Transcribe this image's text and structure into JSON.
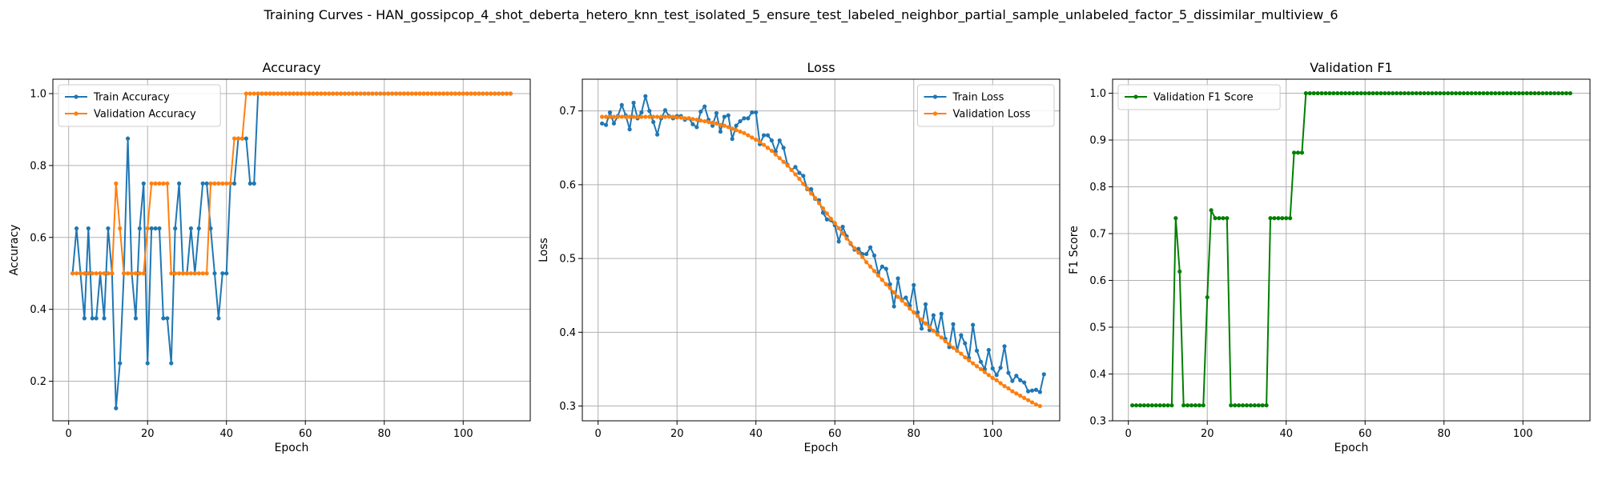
{
  "figure": {
    "suptitle": "Training Curves - HAN_gossipcop_4_shot_deberta_hetero_knn_test_isolated_5_ensure_test_labeled_neighbor_partial_sample_unlabeled_factor_5_dissimilar_multiview_6"
  },
  "colors": {
    "blue": "#1f77b4",
    "orange": "#ff7f0e",
    "green": "#008000",
    "grid": "#b0b0b0"
  },
  "chart_data": [
    {
      "type": "line",
      "title": "Accuracy",
      "xlabel": "Epoch",
      "ylabel": "Accuracy",
      "xlim": [
        -4,
        117
      ],
      "ylim": [
        0.09,
        1.04
      ],
      "xticks": [
        0,
        20,
        40,
        60,
        80,
        100
      ],
      "yticks": [
        0.2,
        0.4,
        0.6,
        0.8,
        1.0
      ],
      "ytick_labels": [
        "0.2",
        "0.4",
        "0.6",
        "0.8",
        "1.0"
      ],
      "grid": true,
      "legend_position": "upper left",
      "x_start": 1,
      "series": [
        {
          "name": "Train Accuracy",
          "color": "#1f77b4",
          "values": [
            0.5,
            0.625,
            0.5,
            0.375,
            0.625,
            0.375,
            0.375,
            0.5,
            0.375,
            0.625,
            0.5,
            0.125,
            0.25,
            0.5,
            0.875,
            0.5,
            0.375,
            0.625,
            0.75,
            0.25,
            0.625,
            0.625,
            0.625,
            0.375,
            0.375,
            0.25,
            0.625,
            0.75,
            0.5,
            0.5,
            0.625,
            0.5,
            0.625,
            0.75,
            0.75,
            0.625,
            0.5,
            0.375,
            0.5,
            0.5,
            0.75,
            0.75,
            0.875,
            0.875,
            0.875,
            0.75,
            0.75,
            1,
            1,
            1,
            1,
            1,
            1,
            1,
            1,
            1,
            1,
            1,
            1,
            1,
            1,
            1,
            1,
            1,
            1,
            1,
            1,
            1,
            1,
            1,
            1,
            1,
            1,
            1,
            1,
            1,
            1,
            1,
            1,
            1,
            1,
            1,
            1,
            1,
            1,
            1,
            1,
            1,
            1,
            1,
            1,
            1,
            1,
            1,
            1,
            1,
            1,
            1,
            1,
            1,
            1,
            1,
            1,
            1,
            1,
            1,
            1,
            1,
            1,
            1,
            1,
            1
          ]
        },
        {
          "name": "Validation Accuracy",
          "color": "#ff7f0e",
          "values": [
            0.5,
            0.5,
            0.5,
            0.5,
            0.5,
            0.5,
            0.5,
            0.5,
            0.5,
            0.5,
            0.5,
            0.75,
            0.625,
            0.5,
            0.5,
            0.5,
            0.5,
            0.5,
            0.5,
            0.625,
            0.75,
            0.75,
            0.75,
            0.75,
            0.75,
            0.5,
            0.5,
            0.5,
            0.5,
            0.5,
            0.5,
            0.5,
            0.5,
            0.5,
            0.5,
            0.75,
            0.75,
            0.75,
            0.75,
            0.75,
            0.75,
            0.875,
            0.875,
            0.875,
            1,
            1,
            1,
            1,
            1,
            1,
            1,
            1,
            1,
            1,
            1,
            1,
            1,
            1,
            1,
            1,
            1,
            1,
            1,
            1,
            1,
            1,
            1,
            1,
            1,
            1,
            1,
            1,
            1,
            1,
            1,
            1,
            1,
            1,
            1,
            1,
            1,
            1,
            1,
            1,
            1,
            1,
            1,
            1,
            1,
            1,
            1,
            1,
            1,
            1,
            1,
            1,
            1,
            1,
            1,
            1,
            1,
            1,
            1,
            1,
            1,
            1,
            1,
            1,
            1,
            1,
            1,
            1
          ]
        }
      ]
    },
    {
      "type": "line",
      "title": "Loss",
      "xlabel": "Epoch",
      "ylabel": "Loss",
      "xlim": [
        -4,
        117
      ],
      "ylim": [
        0.28,
        0.743
      ],
      "xticks": [
        0,
        20,
        40,
        60,
        80,
        100
      ],
      "yticks": [
        0.3,
        0.4,
        0.5,
        0.6,
        0.7
      ],
      "ytick_labels": [
        "0.3",
        "0.4",
        "0.5",
        "0.6",
        "0.7"
      ],
      "grid": true,
      "legend_position": "upper right",
      "x_start": 1,
      "series": [
        {
          "name": "Train Loss",
          "color": "#1f77b4",
          "values": [
            0.683,
            0.681,
            0.698,
            0.683,
            0.693,
            0.708,
            0.694,
            0.675,
            0.711,
            0.69,
            0.698,
            0.72,
            0.7,
            0.685,
            0.668,
            0.69,
            0.701,
            0.693,
            0.69,
            0.693,
            0.693,
            0.688,
            0.69,
            0.682,
            0.678,
            0.699,
            0.706,
            0.688,
            0.68,
            0.697,
            0.672,
            0.692,
            0.694,
            0.662,
            0.68,
            0.686,
            0.69,
            0.69,
            0.698,
            0.698,
            0.655,
            0.667,
            0.667,
            0.66,
            0.645,
            0.66,
            0.65,
            0.627,
            0.62,
            0.624,
            0.616,
            0.612,
            0.594,
            0.594,
            0.581,
            0.579,
            0.562,
            0.553,
            0.552,
            0.545,
            0.523,
            0.543,
            0.53,
            0.52,
            0.512,
            0.513,
            0.506,
            0.506,
            0.515,
            0.504,
            0.48,
            0.489,
            0.486,
            0.465,
            0.435,
            0.473,
            0.444,
            0.447,
            0.436,
            0.464,
            0.427,
            0.405,
            0.438,
            0.403,
            0.423,
            0.4,
            0.425,
            0.391,
            0.38,
            0.411,
            0.375,
            0.396,
            0.385,
            0.365,
            0.41,
            0.375,
            0.36,
            0.35,
            0.376,
            0.351,
            0.342,
            0.352,
            0.381,
            0.345,
            0.334,
            0.341,
            0.335,
            0.332,
            0.32,
            0.321,
            0.322,
            0.319,
            0.343
          ]
        },
        {
          "name": "Validation Loss",
          "color": "#ff7f0e",
          "values": [
            0.692,
            0.692,
            0.692,
            0.692,
            0.692,
            0.692,
            0.692,
            0.692,
            0.692,
            0.692,
            0.692,
            0.692,
            0.692,
            0.692,
            0.692,
            0.692,
            0.692,
            0.692,
            0.692,
            0.691,
            0.691,
            0.69,
            0.69,
            0.689,
            0.688,
            0.687,
            0.686,
            0.685,
            0.684,
            0.683,
            0.681,
            0.68,
            0.678,
            0.676,
            0.674,
            0.672,
            0.67,
            0.667,
            0.664,
            0.661,
            0.658,
            0.654,
            0.65,
            0.646,
            0.641,
            0.636,
            0.631,
            0.626,
            0.62,
            0.614,
            0.608,
            0.601,
            0.595,
            0.588,
            0.582,
            0.575,
            0.568,
            0.561,
            0.554,
            0.548,
            0.541,
            0.534,
            0.527,
            0.521,
            0.514,
            0.508,
            0.502,
            0.495,
            0.489,
            0.483,
            0.477,
            0.471,
            0.465,
            0.46,
            0.454,
            0.448,
            0.443,
            0.438,
            0.432,
            0.427,
            0.422,
            0.417,
            0.412,
            0.407,
            0.402,
            0.397,
            0.393,
            0.388,
            0.384,
            0.379,
            0.375,
            0.371,
            0.366,
            0.362,
            0.358,
            0.354,
            0.35,
            0.346,
            0.342,
            0.338,
            0.335,
            0.331,
            0.327,
            0.324,
            0.32,
            0.317,
            0.314,
            0.311,
            0.308,
            0.305,
            0.302,
            0.3
          ]
        }
      ]
    },
    {
      "type": "line",
      "title": "Validation F1",
      "xlabel": "Epoch",
      "ylabel": "F1 Score",
      "xlim": [
        -4,
        117
      ],
      "ylim": [
        0.3,
        1.03
      ],
      "xticks": [
        0,
        20,
        40,
        60,
        80,
        100
      ],
      "yticks": [
        0.3,
        0.4,
        0.5,
        0.6,
        0.7,
        0.8,
        0.9,
        1.0
      ],
      "ytick_labels": [
        "0.3",
        "0.4",
        "0.5",
        "0.6",
        "0.7",
        "0.8",
        "0.9",
        "1.0"
      ],
      "grid": true,
      "legend_position": "upper left",
      "x_start": 1,
      "series": [
        {
          "name": "Validation F1 Score",
          "color": "#008000",
          "values": [
            0.333,
            0.333,
            0.333,
            0.333,
            0.333,
            0.333,
            0.333,
            0.333,
            0.333,
            0.333,
            0.333,
            0.733,
            0.619,
            0.333,
            0.333,
            0.333,
            0.333,
            0.333,
            0.333,
            0.564,
            0.75,
            0.733,
            0.733,
            0.733,
            0.733,
            0.333,
            0.333,
            0.333,
            0.333,
            0.333,
            0.333,
            0.333,
            0.333,
            0.333,
            0.333,
            0.733,
            0.733,
            0.733,
            0.733,
            0.733,
            0.733,
            0.873,
            0.873,
            0.873,
            1,
            1,
            1,
            1,
            1,
            1,
            1,
            1,
            1,
            1,
            1,
            1,
            1,
            1,
            1,
            1,
            1,
            1,
            1,
            1,
            1,
            1,
            1,
            1,
            1,
            1,
            1,
            1,
            1,
            1,
            1,
            1,
            1,
            1,
            1,
            1,
            1,
            1,
            1,
            1,
            1,
            1,
            1,
            1,
            1,
            1,
            1,
            1,
            1,
            1,
            1,
            1,
            1,
            1,
            1,
            1,
            1,
            1,
            1,
            1,
            1,
            1,
            1,
            1,
            1,
            1,
            1,
            1
          ]
        }
      ]
    }
  ]
}
